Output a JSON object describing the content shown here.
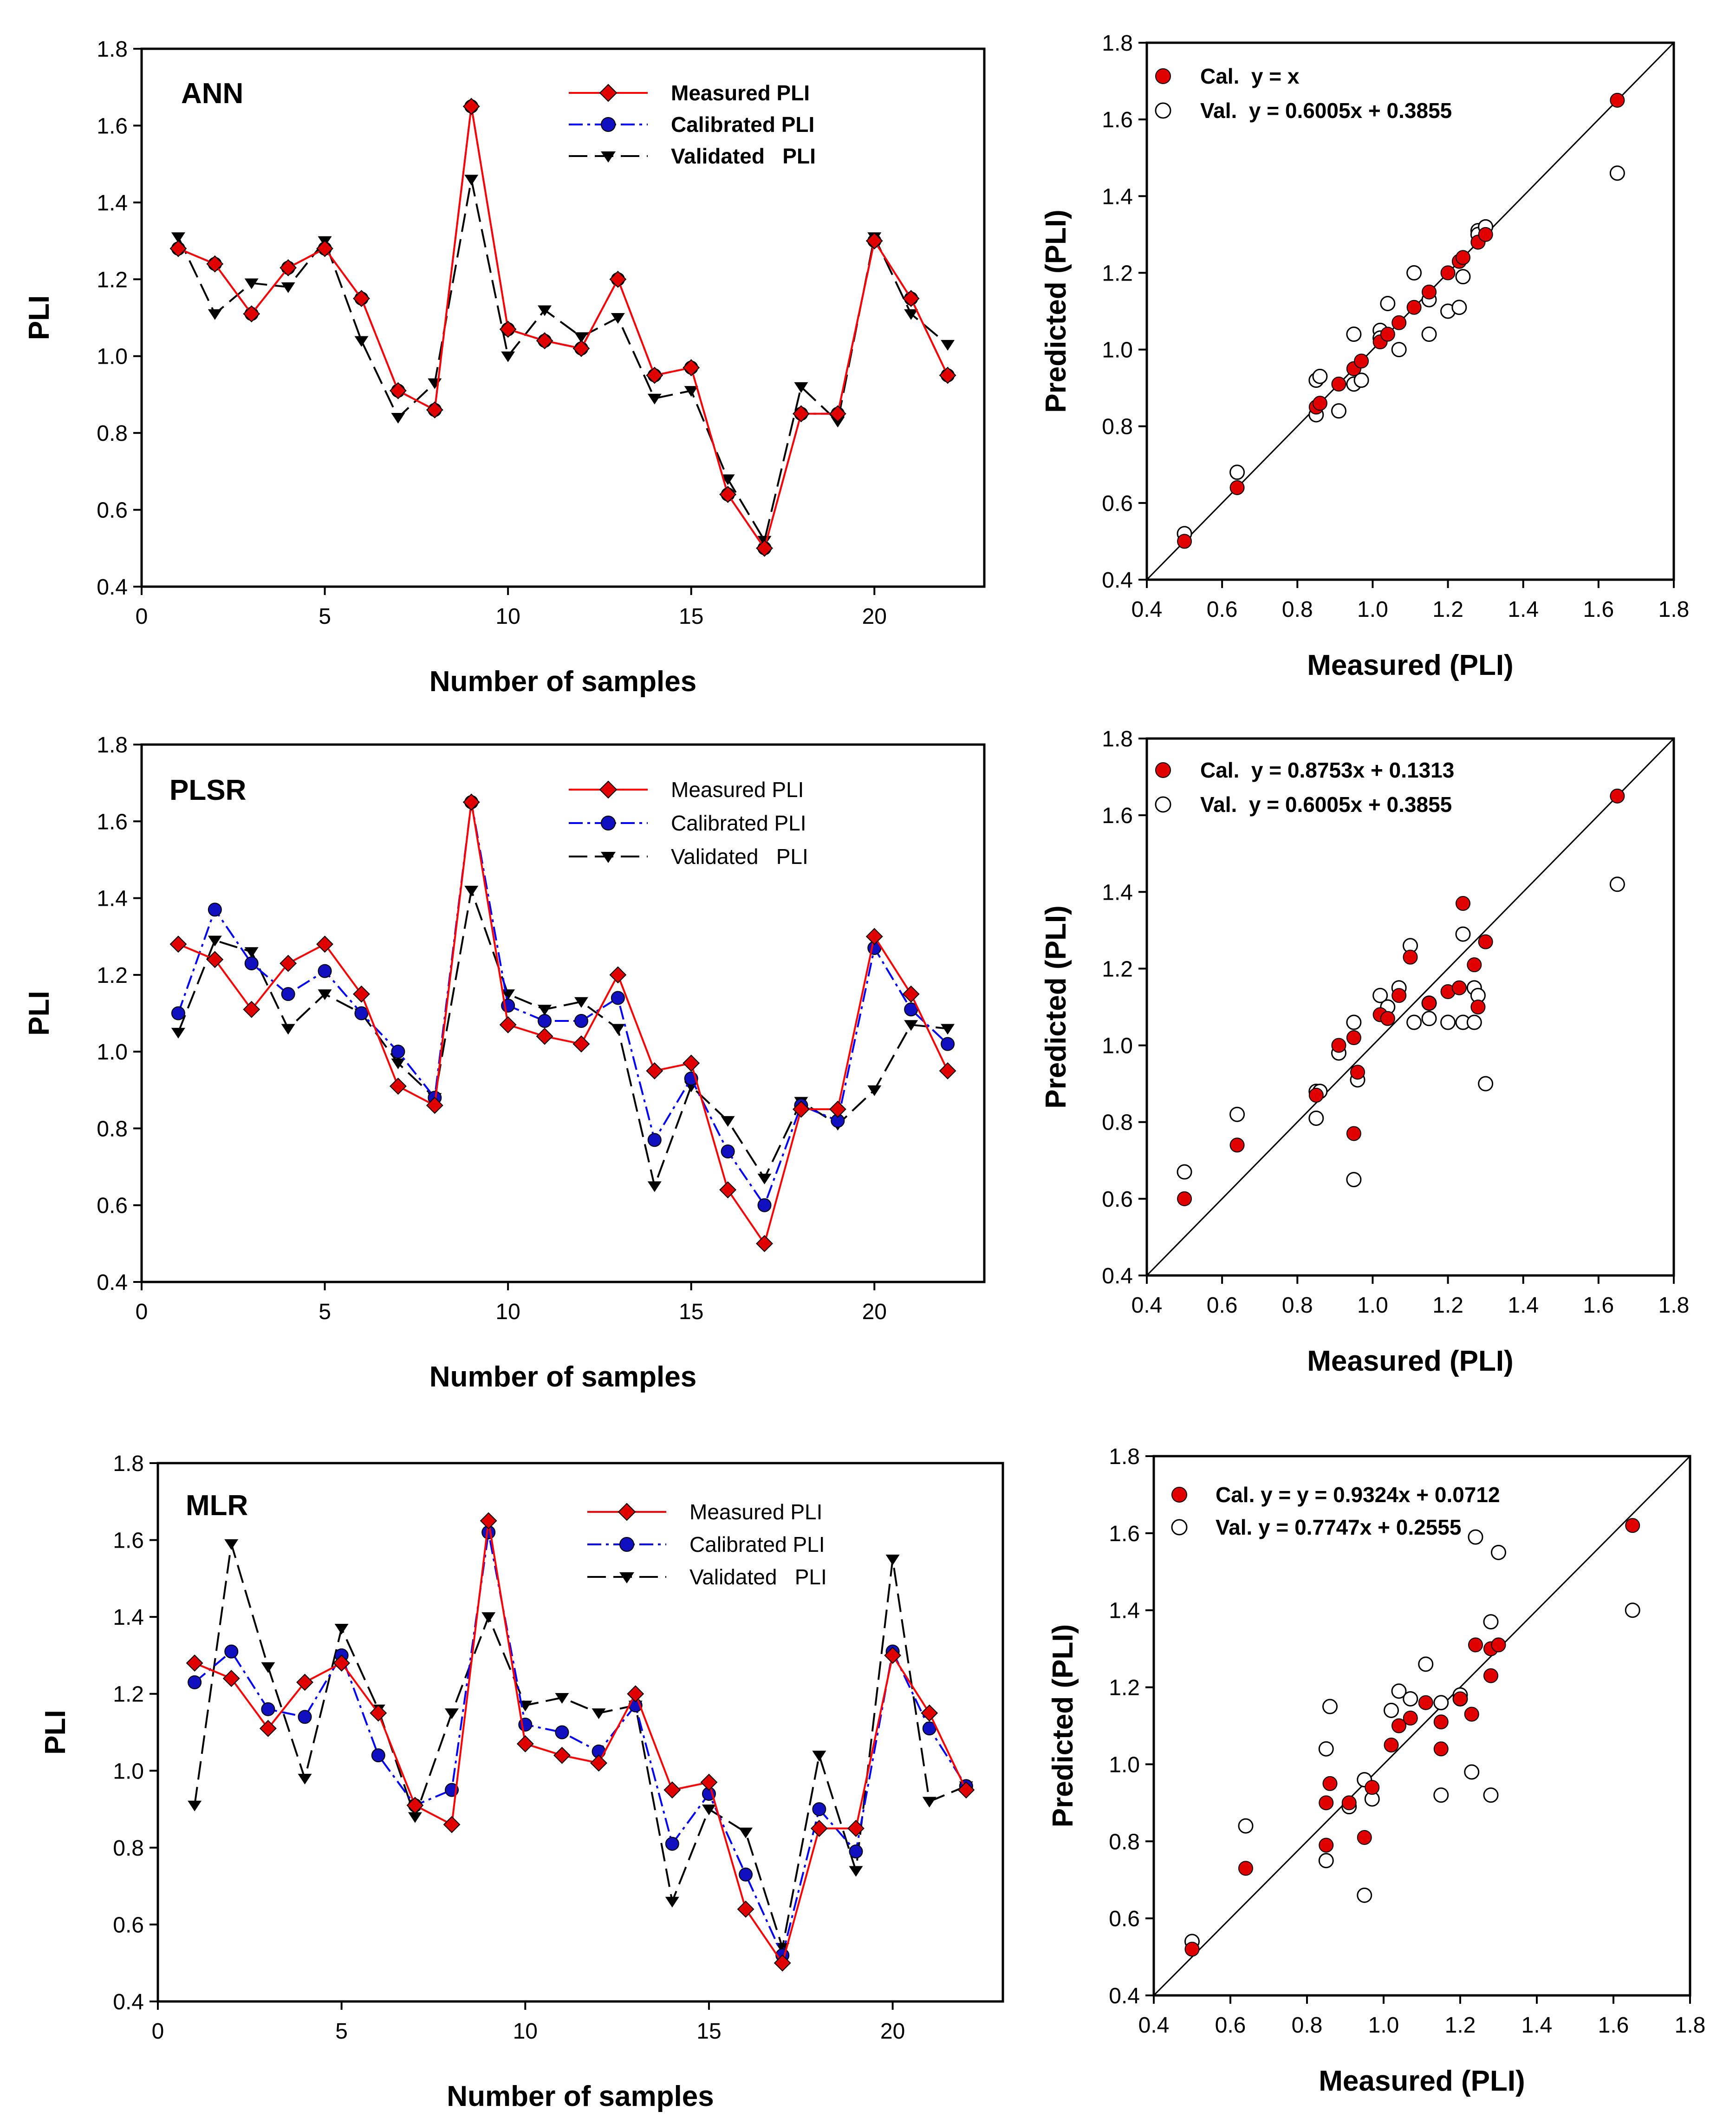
{
  "figure": {
    "colors": {
      "measured": "#ff0000",
      "calibrated": "#0000ff",
      "validated": "#000000",
      "cal_fill": "#e00000",
      "marker_blue": "#1010c0"
    }
  },
  "chart_data": [
    {
      "type": "line",
      "id": "ann-series",
      "panel_label": "ANN",
      "xlabel": "Number of samples",
      "ylabel": "PLI",
      "xlim": [
        0,
        23
      ],
      "ylim": [
        0.4,
        1.8
      ],
      "xticks": [
        0,
        5,
        10,
        15,
        20
      ],
      "yticks": [
        0.4,
        0.6,
        0.8,
        1.0,
        1.2,
        1.4,
        1.6,
        1.8
      ],
      "x": [
        1,
        2,
        3,
        4,
        5,
        6,
        7,
        8,
        9,
        10,
        11,
        12,
        13,
        14,
        15,
        16,
        17,
        18,
        19,
        20,
        21,
        22
      ],
      "series": [
        {
          "name": "Measured PLI",
          "style": "measured",
          "values": [
            1.28,
            1.24,
            1.11,
            1.23,
            1.28,
            1.15,
            0.91,
            0.86,
            1.65,
            1.07,
            1.04,
            1.02,
            1.2,
            0.95,
            0.97,
            0.64,
            0.5,
            0.85,
            0.85,
            1.3,
            1.15,
            0.95
          ]
        },
        {
          "name": "Calibrated PLI",
          "style": "calibrated",
          "values": [
            1.28,
            1.24,
            1.11,
            1.23,
            1.28,
            1.15,
            0.91,
            0.86,
            1.65,
            1.07,
            1.04,
            1.02,
            1.2,
            0.95,
            0.97,
            0.64,
            0.5,
            0.85,
            0.85,
            1.3,
            1.15,
            0.95
          ]
        },
        {
          "name": "Validated   PLI",
          "style": "validated",
          "values": [
            1.31,
            1.11,
            1.19,
            1.18,
            1.3,
            1.04,
            0.84,
            0.93,
            1.46,
            1.0,
            1.12,
            1.05,
            1.1,
            0.89,
            0.91,
            0.68,
            0.52,
            0.92,
            0.83,
            1.31,
            1.11,
            1.03
          ]
        }
      ]
    },
    {
      "type": "scatter",
      "id": "ann-scatter",
      "xlabel": "Measured (PLI)",
      "ylabel": "Predicted (PLI)",
      "xlim": [
        0.4,
        1.8
      ],
      "ylim": [
        0.4,
        1.8
      ],
      "xticks": [
        0.4,
        0.6,
        0.8,
        1.0,
        1.2,
        1.4,
        1.6,
        1.8
      ],
      "yticks": [
        0.4,
        0.6,
        0.8,
        1.0,
        1.2,
        1.4,
        1.6,
        1.8
      ],
      "legend": [
        "Cal.  y = x",
        "Val.  y = 0.6005x + 0.3855"
      ],
      "cal": {
        "x": [
          0.5,
          0.64,
          0.85,
          0.86,
          0.91,
          0.95,
          0.95,
          0.97,
          1.02,
          1.04,
          1.07,
          1.11,
          1.15,
          1.2,
          1.23,
          1.24,
          1.28,
          1.28,
          1.3,
          1.65
        ],
        "y": [
          0.5,
          0.64,
          0.85,
          0.86,
          0.91,
          0.95,
          0.95,
          0.97,
          1.02,
          1.04,
          1.07,
          1.11,
          1.15,
          1.2,
          1.23,
          1.24,
          1.28,
          1.28,
          1.3,
          1.65
        ]
      },
      "val": {
        "x": [
          0.5,
          0.64,
          0.85,
          0.85,
          0.86,
          0.91,
          0.95,
          0.95,
          0.97,
          1.02,
          1.02,
          1.04,
          1.07,
          1.11,
          1.15,
          1.15,
          1.2,
          1.23,
          1.24,
          1.28,
          1.28,
          1.3,
          1.65
        ],
        "y": [
          0.52,
          0.68,
          0.92,
          0.83,
          0.93,
          0.84,
          0.91,
          1.04,
          0.92,
          1.05,
          1.03,
          1.12,
          1.0,
          1.2,
          1.04,
          1.13,
          1.1,
          1.11,
          1.19,
          1.31,
          1.3,
          1.32,
          1.46
        ]
      }
    },
    {
      "type": "line",
      "id": "plsr-series",
      "panel_label": "PLSR",
      "xlabel": "Number of samples",
      "ylabel": "PLI",
      "xlim": [
        0,
        23
      ],
      "ylim": [
        0.4,
        1.8
      ],
      "xticks": [
        0,
        5,
        10,
        15,
        20
      ],
      "yticks": [
        0.4,
        0.6,
        0.8,
        1.0,
        1.2,
        1.4,
        1.6,
        1.8
      ],
      "x": [
        1,
        2,
        3,
        4,
        5,
        6,
        7,
        8,
        9,
        10,
        11,
        12,
        13,
        14,
        15,
        16,
        17,
        18,
        19,
        20,
        21,
        22
      ],
      "series": [
        {
          "name": "Measured PLI",
          "style": "measured",
          "values": [
            1.28,
            1.24,
            1.11,
            1.23,
            1.28,
            1.15,
            0.91,
            0.86,
            1.65,
            1.07,
            1.04,
            1.02,
            1.2,
            0.95,
            0.97,
            0.64,
            0.5,
            0.85,
            0.85,
            1.3,
            1.15,
            0.95
          ]
        },
        {
          "name": "Calibrated PLI",
          "style": "calibrated",
          "values": [
            1.1,
            1.37,
            1.23,
            1.15,
            1.21,
            1.1,
            1.0,
            0.88,
            1.65,
            1.12,
            1.08,
            1.08,
            1.14,
            0.77,
            0.93,
            0.74,
            0.6,
            0.86,
            0.82,
            1.27,
            1.11,
            1.02
          ]
        },
        {
          "name": "Validated   PLI",
          "style": "validated",
          "values": [
            1.05,
            1.29,
            1.26,
            1.06,
            1.15,
            1.1,
            0.97,
            0.88,
            1.42,
            1.15,
            1.11,
            1.13,
            1.06,
            0.65,
            0.91,
            0.82,
            0.67,
            0.87,
            0.81,
            0.9,
            1.07,
            1.06
          ]
        }
      ]
    },
    {
      "type": "scatter",
      "id": "plsr-scatter",
      "xlabel": "Measured (PLI)",
      "ylabel": "Predicted (PLI)",
      "xlim": [
        0.4,
        1.8
      ],
      "ylim": [
        0.4,
        1.8
      ],
      "xticks": [
        0.4,
        0.6,
        0.8,
        1.0,
        1.2,
        1.4,
        1.6,
        1.8
      ],
      "yticks": [
        0.4,
        0.6,
        0.8,
        1.0,
        1.2,
        1.4,
        1.6,
        1.8
      ],
      "legend": [
        "Cal.  y = 0.8753x + 0.1313",
        "Val.  y = 0.6005x + 0.3855"
      ],
      "cal": {
        "x": [
          0.5,
          0.64,
          0.85,
          0.91,
          0.95,
          0.95,
          0.96,
          1.02,
          1.04,
          1.07,
          1.1,
          1.15,
          1.2,
          1.23,
          1.24,
          1.27,
          1.28,
          1.3,
          1.65
        ],
        "y": [
          0.6,
          0.74,
          0.87,
          1.0,
          0.77,
          1.02,
          0.93,
          1.08,
          1.07,
          1.13,
          1.23,
          1.11,
          1.14,
          1.15,
          1.37,
          1.21,
          1.1,
          1.27,
          1.65
        ]
      },
      "val": {
        "x": [
          0.5,
          0.64,
          0.85,
          0.85,
          0.86,
          0.91,
          0.95,
          0.95,
          0.96,
          1.02,
          1.04,
          1.07,
          1.1,
          1.11,
          1.15,
          1.15,
          1.2,
          1.24,
          1.24,
          1.27,
          1.27,
          1.28,
          1.3,
          1.65
        ],
        "y": [
          0.67,
          0.82,
          0.88,
          0.81,
          0.88,
          0.98,
          0.65,
          1.06,
          0.91,
          1.13,
          1.1,
          1.15,
          1.26,
          1.06,
          1.07,
          1.11,
          1.06,
          1.06,
          1.29,
          1.15,
          1.06,
          1.13,
          0.9,
          1.42
        ]
      }
    },
    {
      "type": "line",
      "id": "mlr-series",
      "panel_label": "MLR",
      "xlabel": "Number of samples",
      "ylabel": "PLI",
      "xlim": [
        0,
        23
      ],
      "ylim": [
        0.4,
        1.8
      ],
      "xticks": [
        0,
        5,
        10,
        15,
        20
      ],
      "yticks": [
        0.4,
        0.6,
        0.8,
        1.0,
        1.2,
        1.4,
        1.6,
        1.8
      ],
      "x": [
        1,
        2,
        3,
        4,
        5,
        6,
        7,
        8,
        9,
        10,
        11,
        12,
        13,
        14,
        15,
        16,
        17,
        18,
        19,
        20,
        21,
        22
      ],
      "series": [
        {
          "name": "Measured PLI",
          "style": "measured",
          "values": [
            1.28,
            1.24,
            1.11,
            1.23,
            1.28,
            1.15,
            0.91,
            0.86,
            1.65,
            1.07,
            1.04,
            1.02,
            1.2,
            0.95,
            0.97,
            0.64,
            0.5,
            0.85,
            0.85,
            1.3,
            1.15,
            0.95
          ]
        },
        {
          "name": "Calibrated PLI",
          "style": "calibrated",
          "values": [
            1.23,
            1.31,
            1.16,
            1.14,
            1.3,
            1.04,
            0.91,
            0.95,
            1.62,
            1.12,
            1.1,
            1.05,
            1.17,
            0.81,
            0.94,
            0.73,
            0.52,
            0.9,
            0.79,
            1.31,
            1.11,
            0.96
          ]
        },
        {
          "name": "Validated   PLI",
          "style": "validated",
          "values": [
            0.91,
            1.59,
            1.27,
            0.98,
            1.37,
            1.16,
            0.88,
            1.15,
            1.4,
            1.17,
            1.19,
            1.15,
            1.17,
            0.66,
            0.9,
            0.84,
            0.54,
            1.04,
            0.74,
            1.55,
            0.92,
            0.96
          ]
        }
      ]
    },
    {
      "type": "scatter",
      "id": "mlr-scatter",
      "xlabel": "Measured (PLI)",
      "ylabel": "Predicted (PLI)",
      "xlim": [
        0.4,
        1.8
      ],
      "ylim": [
        0.4,
        1.8
      ],
      "xticks": [
        0.4,
        0.6,
        0.8,
        1.0,
        1.2,
        1.4,
        1.6,
        1.8
      ],
      "yticks": [
        0.4,
        0.6,
        0.8,
        1.0,
        1.2,
        1.4,
        1.6,
        1.8
      ],
      "legend": [
        "Cal. y = y = 0.9324x + 0.0712",
        "Val. y = 0.7747x + 0.2555"
      ],
      "cal": {
        "x": [
          0.5,
          0.64,
          0.85,
          0.85,
          0.86,
          0.91,
          0.95,
          0.97,
          1.02,
          1.04,
          1.07,
          1.11,
          1.15,
          1.15,
          1.2,
          1.23,
          1.24,
          1.28,
          1.28,
          1.3,
          1.65
        ],
        "y": [
          0.52,
          0.73,
          0.9,
          0.79,
          0.95,
          0.9,
          0.81,
          0.94,
          1.05,
          1.1,
          1.12,
          1.16,
          1.04,
          1.11,
          1.17,
          1.13,
          1.31,
          1.3,
          1.23,
          1.31,
          1.62
        ]
      },
      "val": {
        "x": [
          0.5,
          0.64,
          0.85,
          0.85,
          0.86,
          0.91,
          0.95,
          0.95,
          0.97,
          1.02,
          1.04,
          1.07,
          1.11,
          1.15,
          1.15,
          1.2,
          1.2,
          1.23,
          1.24,
          1.28,
          1.28,
          1.3,
          1.65
        ],
        "y": [
          0.54,
          0.84,
          1.04,
          0.75,
          1.15,
          0.89,
          0.66,
          0.96,
          0.91,
          1.14,
          1.19,
          1.17,
          1.26,
          1.16,
          0.92,
          1.17,
          1.18,
          0.98,
          1.59,
          1.37,
          0.92,
          1.55,
          1.4
        ]
      }
    }
  ]
}
